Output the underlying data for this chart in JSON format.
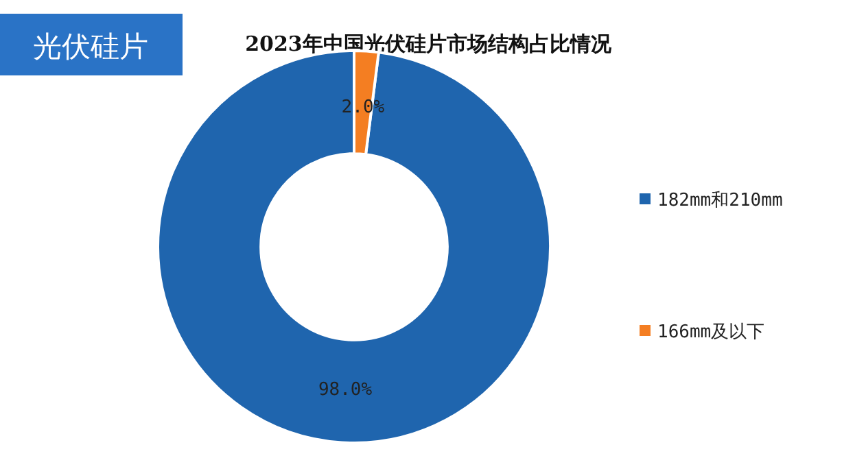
{
  "chart_data": {
    "type": "donut",
    "title": "2023年中国光伏硅片市场结构占比情况",
    "annotations": [
      "光伏硅片"
    ],
    "categories": [
      "182mm和210mm",
      "166mm及以下"
    ],
    "values": [
      98,
      2
    ],
    "colors": [
      "#1f65ae",
      "#f47e22"
    ],
    "value_labels": [
      "98.0%",
      "2.0%"
    ],
    "legend": "right"
  }
}
